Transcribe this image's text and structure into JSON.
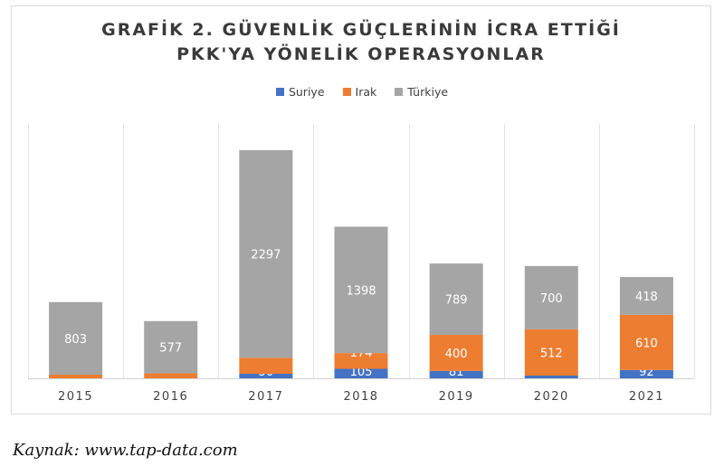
{
  "chart_data": {
    "type": "bar",
    "stacked": true,
    "title_lines": [
      "GRAFİK 2. GÜVENLİK GÜÇLERİNİN İCRA ETTİĞİ",
      "PKK'YA YÖNELİK OPERASYONLAR"
    ],
    "categories": [
      "2015",
      "2016",
      "2017",
      "2018",
      "2019",
      "2020",
      "2021"
    ],
    "series": [
      {
        "name": "Suriye",
        "color": "#4472c4",
        "values": [
          0,
          0,
          50,
          105,
          81,
          30,
          92
        ]
      },
      {
        "name": "Irak",
        "color": "#ed7d31",
        "values": [
          40,
          56,
          177,
          174,
          400,
          512,
          610
        ]
      },
      {
        "name": "Türkiye",
        "color": "#a5a5a5",
        "values": [
          803,
          577,
          2297,
          1398,
          789,
          700,
          418
        ]
      }
    ],
    "ylim": [
      0,
      2600
    ],
    "grid": "vertical separators",
    "legend_position": "top"
  },
  "source": "Kaynak: www.tap-data.com"
}
